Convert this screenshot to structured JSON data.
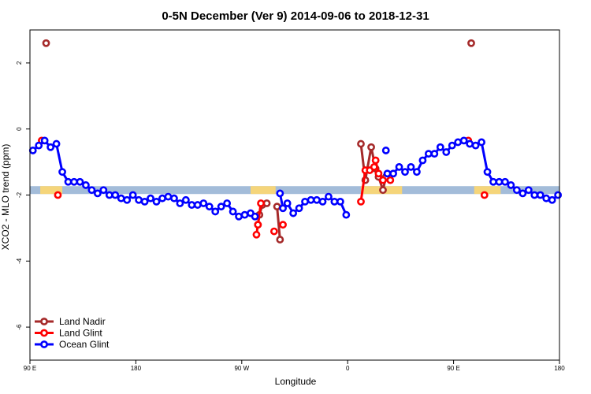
{
  "chart_data": {
    "type": "line",
    "title": "0-5N December (Ver 9)   2014-09-06 to 2018-12-31",
    "xlabel": "Longitude",
    "ylabel": "XCO2 - MLO trend (ppm)",
    "xlim": [
      90,
      450
    ],
    "ylim": [
      -7.0,
      3.0
    ],
    "x_ticks": [
      {
        "value": 90,
        "label": "90 E"
      },
      {
        "value": 162,
        "label": "180"
      },
      {
        "value": 234,
        "label": "90 W"
      },
      {
        "value": 306,
        "label": "0"
      },
      {
        "value": 378,
        "label": "90 E"
      },
      {
        "value": 450,
        "label": "180"
      }
    ],
    "y_ticks": [
      {
        "value": 2,
        "label": "2"
      },
      {
        "value": 0,
        "label": "0"
      },
      {
        "value": -2,
        "label": "-2"
      },
      {
        "value": -4,
        "label": "-4"
      },
      {
        "value": -6,
        "label": "-6"
      }
    ],
    "band": {
      "y_center": -1.85,
      "color": "#a3bcd9",
      "highlight_color": "#f5d57a",
      "highlights": [
        [
          97,
          112
        ],
        [
          240,
          257
        ],
        [
          315,
          343
        ],
        [
          392,
          410
        ]
      ]
    },
    "legend_position": "bottom-left",
    "series": [
      {
        "name": "Land Nadir",
        "color": "#a52a2a",
        "segments": [
          [
            [
              101,
              2.6
            ]
          ],
          [
            [
              245,
              -2.9
            ],
            [
              246,
              -2.6
            ],
            [
              248,
              -2.3
            ],
            [
              251,
              -2.25
            ]
          ],
          [
            [
              258,
              -2.35
            ],
            [
              260,
              -3.35
            ]
          ],
          [
            [
              315,
              -0.45
            ],
            [
              318,
              -1.55
            ],
            [
              322,
              -0.55
            ],
            [
              325,
              -1.2
            ],
            [
              327,
              -1.45
            ],
            [
              330,
              -1.85
            ],
            [
              332,
              -1.45
            ]
          ],
          [
            [
              390,
              2.6
            ]
          ]
        ]
      },
      {
        "name": "Land Glint",
        "color": "#ff0000",
        "segments": [
          [
            [
              98,
              -0.35
            ]
          ],
          [
            [
              109,
              -2.0
            ]
          ],
          [
            [
              244,
              -3.2
            ],
            [
              245,
              -2.9
            ],
            [
              247,
              -2.25
            ]
          ],
          [
            [
              256,
              -3.1
            ]
          ],
          [
            [
              262,
              -2.9
            ]
          ],
          [
            [
              315,
              -2.2
            ],
            [
              318,
              -1.25
            ],
            [
              321,
              -1.25
            ],
            [
              324,
              -1.15
            ],
            [
              325,
              -0.95
            ],
            [
              327,
              -1.35
            ],
            [
              330,
              -1.55
            ],
            [
              335,
              -1.55
            ]
          ],
          [
            [
              388,
              -0.35
            ]
          ],
          [
            [
              399,
              -2.0
            ]
          ]
        ]
      },
      {
        "name": "Ocean Glint",
        "color": "#0000ff",
        "segments": [
          [
            [
              92,
              -0.65
            ],
            [
              96,
              -0.5
            ],
            [
              100,
              -0.35
            ],
            [
              104,
              -0.55
            ],
            [
              108,
              -0.45
            ],
            [
              112,
              -1.3
            ],
            [
              116,
              -1.6
            ],
            [
              120,
              -1.6
            ],
            [
              124,
              -1.6
            ],
            [
              128,
              -1.7
            ],
            [
              132,
              -1.85
            ],
            [
              136,
              -1.95
            ],
            [
              140,
              -1.85
            ],
            [
              144,
              -2.0
            ],
            [
              148,
              -2.0
            ],
            [
              152,
              -2.1
            ],
            [
              156,
              -2.15
            ],
            [
              160,
              -2.0
            ],
            [
              164,
              -2.15
            ],
            [
              168,
              -2.2
            ],
            [
              172,
              -2.1
            ],
            [
              176,
              -2.2
            ],
            [
              180,
              -2.1
            ],
            [
              184,
              -2.05
            ],
            [
              188,
              -2.1
            ],
            [
              192,
              -2.25
            ],
            [
              196,
              -2.15
            ],
            [
              200,
              -2.3
            ],
            [
              204,
              -2.3
            ],
            [
              208,
              -2.25
            ],
            [
              212,
              -2.35
            ],
            [
              216,
              -2.5
            ],
            [
              220,
              -2.35
            ],
            [
              224,
              -2.25
            ],
            [
              228,
              -2.5
            ],
            [
              232,
              -2.65
            ],
            [
              236,
              -2.6
            ],
            [
              240,
              -2.55
            ],
            [
              243,
              -2.65
            ]
          ],
          [
            [
              260,
              -1.95
            ],
            [
              262,
              -2.4
            ],
            [
              265,
              -2.25
            ],
            [
              269,
              -2.55
            ],
            [
              273,
              -2.4
            ],
            [
              277,
              -2.2
            ],
            [
              281,
              -2.15
            ],
            [
              285,
              -2.15
            ],
            [
              289,
              -2.2
            ],
            [
              293,
              -2.05
            ],
            [
              297,
              -2.2
            ],
            [
              301,
              -2.2
            ],
            [
              305,
              -2.6
            ]
          ],
          [
            [
              332,
              -0.65
            ]
          ],
          [
            [
              333,
              -1.35
            ],
            [
              337,
              -1.35
            ],
            [
              341,
              -1.15
            ],
            [
              345,
              -1.3
            ],
            [
              349,
              -1.15
            ],
            [
              353,
              -1.3
            ],
            [
              357,
              -0.95
            ],
            [
              361,
              -0.75
            ],
            [
              365,
              -0.75
            ],
            [
              369,
              -0.55
            ],
            [
              373,
              -0.7
            ],
            [
              377,
              -0.5
            ],
            [
              381,
              -0.4
            ],
            [
              385,
              -0.35
            ],
            [
              389,
              -0.45
            ],
            [
              393,
              -0.5
            ],
            [
              397,
              -0.4
            ],
            [
              401,
              -1.3
            ],
            [
              405,
              -1.6
            ],
            [
              409,
              -1.6
            ],
            [
              413,
              -1.6
            ],
            [
              417,
              -1.7
            ],
            [
              421,
              -1.85
            ],
            [
              425,
              -1.95
            ],
            [
              429,
              -1.85
            ],
            [
              433,
              -2.0
            ],
            [
              437,
              -2.0
            ],
            [
              441,
              -2.1
            ],
            [
              445,
              -2.15
            ],
            [
              449,
              -2.0
            ]
          ]
        ]
      }
    ]
  }
}
